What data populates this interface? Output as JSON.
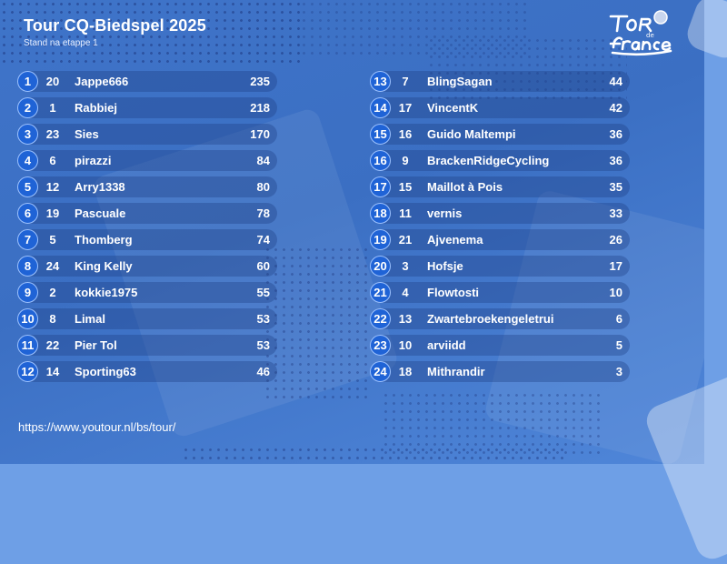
{
  "header": {
    "title": "Tour CQ-Biedspel 2025",
    "subtitle": "Stand na etappe 1"
  },
  "logo": {
    "icon": "tour-de-france-logo"
  },
  "colors": {
    "background": "#3f74c9",
    "rank_badge": "#1f63d6",
    "row": "#2f58a8",
    "text": "#ffffff"
  },
  "standings": [
    {
      "rank": "1",
      "prev": "20",
      "name": "Jappe666",
      "points": "235"
    },
    {
      "rank": "2",
      "prev": "1",
      "name": "Rabbiej",
      "points": "218"
    },
    {
      "rank": "3",
      "prev": "23",
      "name": "Sies",
      "points": "170"
    },
    {
      "rank": "4",
      "prev": "6",
      "name": "pirazzi",
      "points": "84"
    },
    {
      "rank": "5",
      "prev": "12",
      "name": "Arry1338",
      "points": "80"
    },
    {
      "rank": "6",
      "prev": "19",
      "name": "Pascuale",
      "points": "78"
    },
    {
      "rank": "7",
      "prev": "5",
      "name": "Thomberg",
      "points": "74"
    },
    {
      "rank": "8",
      "prev": "24",
      "name": "King Kelly",
      "points": "60"
    },
    {
      "rank": "9",
      "prev": "2",
      "name": "kokkie1975",
      "points": "55"
    },
    {
      "rank": "10",
      "prev": "8",
      "name": "Limal",
      "points": "53"
    },
    {
      "rank": "11",
      "prev": "22",
      "name": "Pier Tol",
      "points": "53"
    },
    {
      "rank": "12",
      "prev": "14",
      "name": "Sporting63",
      "points": "46"
    },
    {
      "rank": "13",
      "prev": "7",
      "name": "BlingSagan",
      "points": "44"
    },
    {
      "rank": "14",
      "prev": "17",
      "name": "VincentK",
      "points": "42"
    },
    {
      "rank": "15",
      "prev": "16",
      "name": "Guido Maltempi",
      "points": "36"
    },
    {
      "rank": "16",
      "prev": "9",
      "name": "BrackenRidgeCycling",
      "points": "36"
    },
    {
      "rank": "17",
      "prev": "15",
      "name": "Maillot à Pois",
      "points": "35"
    },
    {
      "rank": "18",
      "prev": "11",
      "name": "vernis",
      "points": "33"
    },
    {
      "rank": "19",
      "prev": "21",
      "name": "Ajvenema",
      "points": "26"
    },
    {
      "rank": "20",
      "prev": "3",
      "name": "Hofsje",
      "points": "17"
    },
    {
      "rank": "21",
      "prev": "4",
      "name": "Flowtosti",
      "points": "10"
    },
    {
      "rank": "22",
      "prev": "13",
      "name": "Zwartebroekengeletrui",
      "points": "6"
    },
    {
      "rank": "23",
      "prev": "10",
      "name": "arviidd",
      "points": "5"
    },
    {
      "rank": "24",
      "prev": "18",
      "name": "Mithrandir",
      "points": "3"
    }
  ],
  "footer": {
    "url": "https://www.youtour.nl/bs/tour/"
  }
}
